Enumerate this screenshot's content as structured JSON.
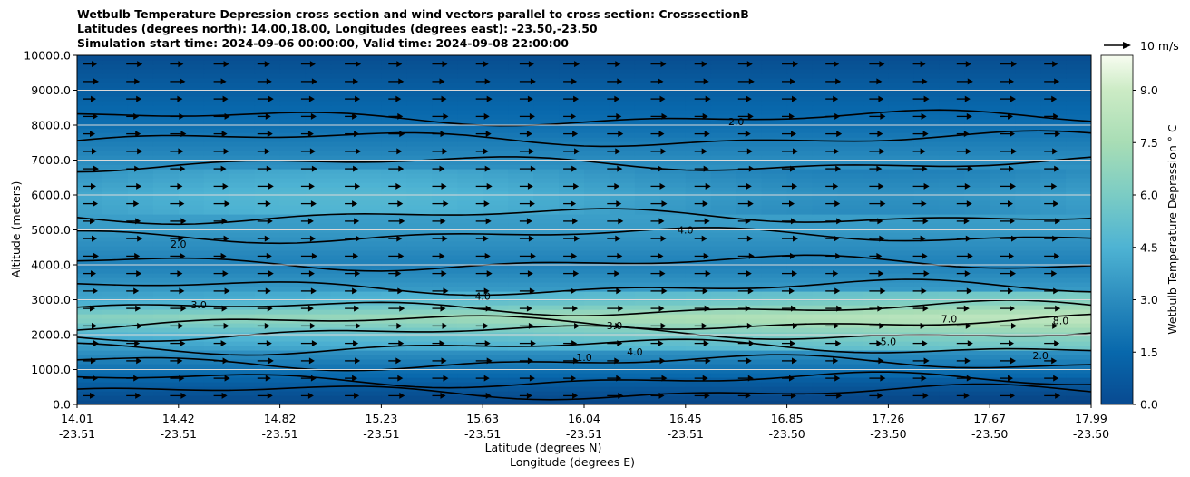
{
  "chart_data": {
    "type": "heatmap",
    "title_lines": [
      "Wetbulb Temperature Depression cross section and wind vectors parallel to cross section: CrosssectionB",
      "Latitudes (degrees north): 14.00,18.00, Longitudes (degrees east): -23.50,-23.50",
      "Simulation start time: 2024-09-06 00:00:00, Valid time: 2024-09-08 22:00:00"
    ],
    "ylabel": "Altitude (meters)",
    "xlabel_lat": "Latitude (degrees N)",
    "xlabel_lon": "Longitude (degrees E)",
    "ylim": [
      0,
      10000
    ],
    "y_ticks": [
      "0.0",
      "1000.0",
      "2000.0",
      "3000.0",
      "4000.0",
      "5000.0",
      "6000.0",
      "7000.0",
      "8000.0",
      "9000.0",
      "10000.0"
    ],
    "x_ticks": [
      {
        "lat": "14.01",
        "lon": "-23.51"
      },
      {
        "lat": "14.42",
        "lon": "-23.51"
      },
      {
        "lat": "14.82",
        "lon": "-23.51"
      },
      {
        "lat": "15.23",
        "lon": "-23.51"
      },
      {
        "lat": "15.63",
        "lon": "-23.51"
      },
      {
        "lat": "16.04",
        "lon": "-23.51"
      },
      {
        "lat": "16.45",
        "lon": "-23.51"
      },
      {
        "lat": "16.85",
        "lon": "-23.50"
      },
      {
        "lat": "17.26",
        "lon": "-23.50"
      },
      {
        "lat": "17.67",
        "lon": "-23.50"
      },
      {
        "lat": "17.99",
        "lon": "-23.50"
      }
    ],
    "colorbar": {
      "label": "Wetbulb Temperature Depression ° C",
      "ticks": [
        "0.0",
        "1.5",
        "3.0",
        "4.5",
        "6.0",
        "7.5",
        "9.0"
      ],
      "range": [
        0,
        10
      ]
    },
    "wind_key": "10 m/s",
    "contour_labels": [
      "1.0",
      "2.0",
      "3.0",
      "4.0",
      "5.0",
      "7.0",
      "8.0"
    ],
    "field_profile": [
      {
        "alt": 0,
        "value": 0.3
      },
      {
        "alt": 500,
        "value": 1.0
      },
      {
        "alt": 1000,
        "value": 1.8
      },
      {
        "alt": 2000,
        "value": 4.5
      },
      {
        "alt": 2500,
        "value": 6.5
      },
      {
        "alt": 3000,
        "value": 4.0
      },
      {
        "alt": 4000,
        "value": 2.5
      },
      {
        "alt": 5000,
        "value": 3.5
      },
      {
        "alt": 6000,
        "value": 4.0
      },
      {
        "alt": 7000,
        "value": 3.0
      },
      {
        "alt": 8000,
        "value": 1.8
      },
      {
        "alt": 10000,
        "value": 0.5
      }
    ]
  }
}
